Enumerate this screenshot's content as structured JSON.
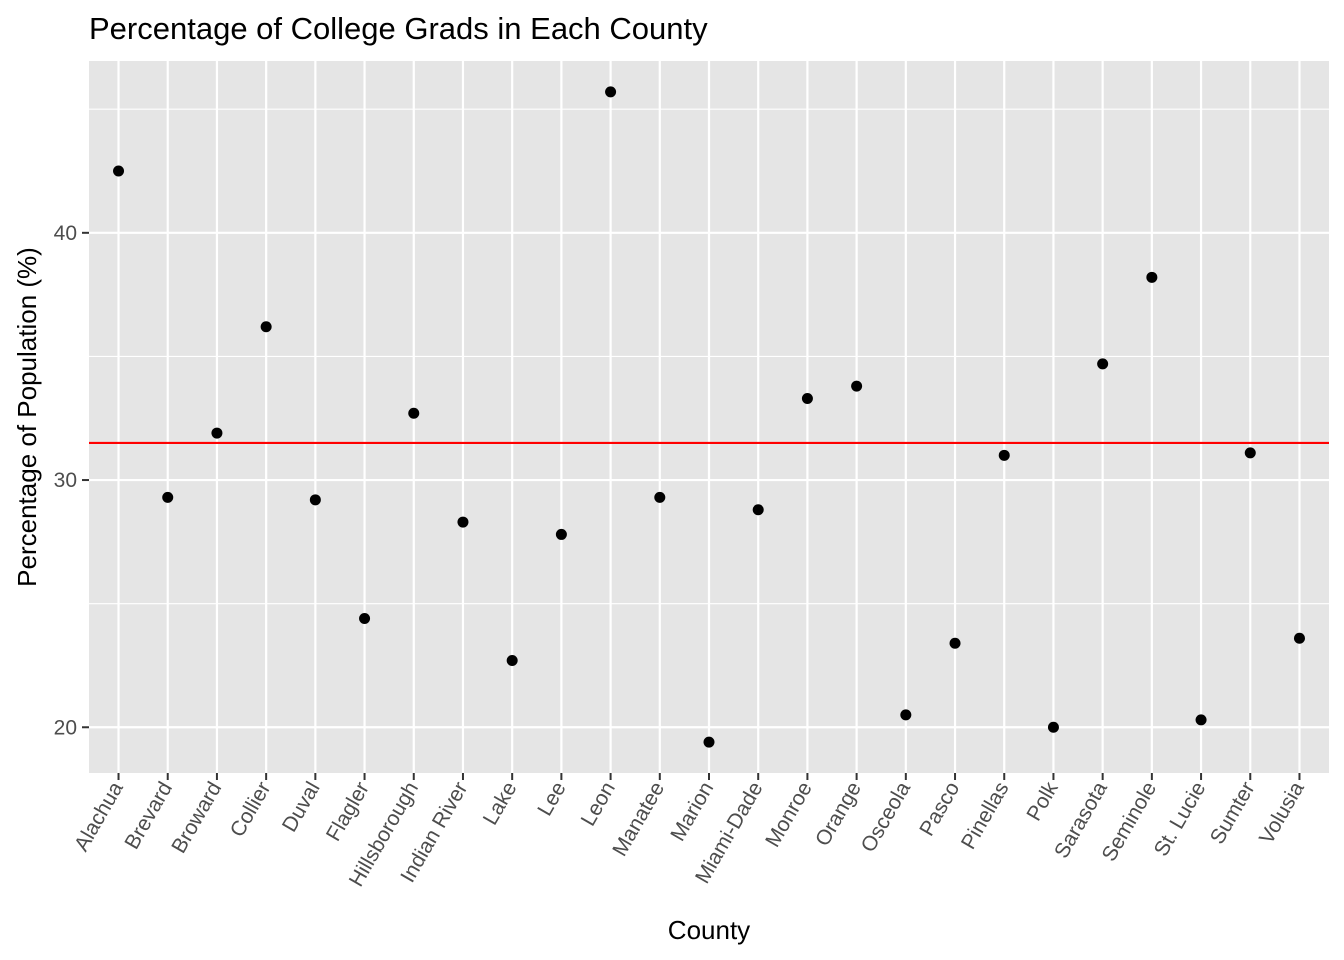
{
  "chart_data": {
    "type": "scatter",
    "title": "Percentage of College Grads in Each County",
    "xlabel": "County",
    "ylabel": "Percentage of Population (%)",
    "categories": [
      "Alachua",
      "Brevard",
      "Broward",
      "Collier",
      "Duval",
      "Flagler",
      "Hillsborough",
      "Indian River",
      "Lake",
      "Lee",
      "Leon",
      "Manatee",
      "Marion",
      "Miami-Dade",
      "Monroe",
      "Orange",
      "Osceola",
      "Pasco",
      "Pinellas",
      "Polk",
      "Sarasota",
      "Seminole",
      "St. Lucie",
      "Sumter",
      "Volusia"
    ],
    "values": [
      42.5,
      29.3,
      31.9,
      36.2,
      29.2,
      24.4,
      32.7,
      28.3,
      22.7,
      27.8,
      45.7,
      29.3,
      19.4,
      28.8,
      33.3,
      33.8,
      20.5,
      23.4,
      31.0,
      20.0,
      34.7,
      38.2,
      20.3,
      31.1,
      23.6
    ],
    "reference_line": {
      "value": 31.5,
      "color": "#ff0000"
    },
    "ylim": [
      18.15,
      46.95
    ],
    "yticks": [
      20,
      30,
      40
    ],
    "grid": true,
    "colors": {
      "panel_background": "#e5e5e5",
      "grid": "#ffffff",
      "point": "#000000",
      "tick_label": "#4d4d4d",
      "tick_mark": "#333333"
    }
  }
}
